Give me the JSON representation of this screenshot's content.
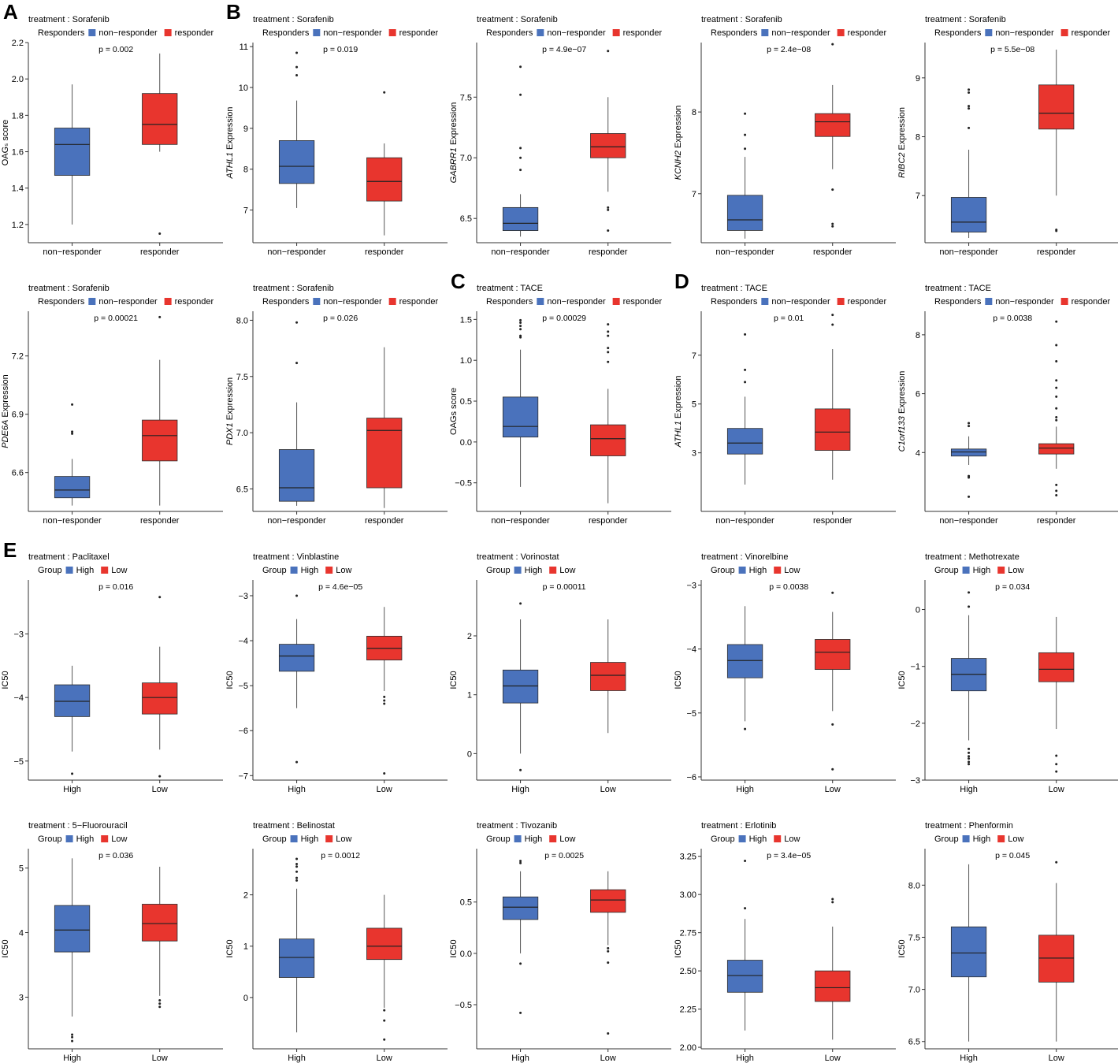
{
  "colors": {
    "blue": "#4A72BC",
    "red": "#E8352E",
    "axis": "#333333",
    "box_stroke": "#2b2b2b"
  },
  "panel_letters": [
    "A",
    "B",
    "C",
    "D",
    "E"
  ],
  "chart_data": [
    {
      "type": "box",
      "title": "treatment : Sorafenib",
      "legend_title": "Responders",
      "categories": [
        "non−responder",
        "responder"
      ],
      "ylabel": "OAGₛ score",
      "ylabel_italic": "",
      "ylim": [
        1.1,
        2.2
      ],
      "yticks": [
        "1.2",
        "1.4",
        "1.6",
        "1.8",
        "2.0",
        "2.2"
      ],
      "pvalue": "p = 0.002",
      "boxes": [
        {
          "q1": 1.47,
          "median": 1.64,
          "q3": 1.73,
          "wlo": 1.2,
          "whi": 1.97,
          "outliers": []
        },
        {
          "q1": 1.64,
          "median": 1.75,
          "q3": 1.92,
          "wlo": 1.6,
          "whi": 2.14,
          "outliers": [
            1.15
          ]
        }
      ]
    },
    {
      "type": "box",
      "title": "treatment : Sorafenib",
      "legend_title": "Responders",
      "categories": [
        "non−responder",
        "responder"
      ],
      "ylabel": " Expression",
      "ylabel_italic": "ATHL1",
      "ylim": [
        6.2,
        11.1
      ],
      "yticks": [
        "7",
        "8",
        "9",
        "10",
        "11"
      ],
      "pvalue": "p = 0.019",
      "boxes": [
        {
          "q1": 7.65,
          "median": 8.07,
          "q3": 8.7,
          "wlo": 7.05,
          "whi": 9.68,
          "outliers": [
            10.3,
            10.5,
            10.85
          ]
        },
        {
          "q1": 7.22,
          "median": 7.7,
          "q3": 8.28,
          "wlo": 6.38,
          "whi": 8.63,
          "outliers": [
            9.88
          ]
        }
      ]
    },
    {
      "type": "box",
      "title": "treatment : Sorafenib",
      "legend_title": "Responders",
      "categories": [
        "non−responder",
        "responder"
      ],
      "ylabel": " Expression",
      "ylabel_italic": "GABRR1",
      "ylim": [
        6.3,
        7.95
      ],
      "yticks": [
        "6.5",
        "7.0",
        "7.5"
      ],
      "pvalue": "p = 4.9e−07",
      "boxes": [
        {
          "q1": 6.4,
          "median": 6.46,
          "q3": 6.59,
          "wlo": 6.35,
          "whi": 6.7,
          "outliers": [
            6.9,
            7.0,
            7.08,
            7.52,
            7.75
          ]
        },
        {
          "q1": 7.0,
          "median": 7.09,
          "q3": 7.2,
          "wlo": 6.72,
          "whi": 7.5,
          "outliers": [
            6.4,
            6.57,
            6.59,
            7.88
          ]
        }
      ]
    },
    {
      "type": "box",
      "title": "treatment : Sorafenib",
      "legend_title": "Responders",
      "categories": [
        "non−responder",
        "responder"
      ],
      "ylabel": " Expression",
      "ylabel_italic": "KCNH2",
      "ylim": [
        6.4,
        8.85
      ],
      "yticks": [
        "7",
        "8"
      ],
      "pvalue": "p = 2.4e−08",
      "boxes": [
        {
          "q1": 6.55,
          "median": 6.68,
          "q3": 6.98,
          "wlo": 6.45,
          "whi": 7.45,
          "outliers": [
            7.55,
            7.72,
            7.98
          ]
        },
        {
          "q1": 7.7,
          "median": 7.88,
          "q3": 7.98,
          "wlo": 7.3,
          "whi": 8.33,
          "outliers": [
            6.6,
            6.63,
            7.05,
            8.83
          ]
        }
      ]
    },
    {
      "type": "box",
      "title": "treatment : Sorafenib",
      "legend_title": "Responders",
      "categories": [
        "non−responder",
        "responder"
      ],
      "ylabel": " Expression",
      "ylabel_italic": "RIBC2",
      "ylim": [
        6.2,
        9.6
      ],
      "yticks": [
        "7",
        "8",
        "9"
      ],
      "pvalue": "p = 5.5e−08",
      "boxes": [
        {
          "q1": 6.38,
          "median": 6.55,
          "q3": 6.97,
          "wlo": 6.28,
          "whi": 7.78,
          "outliers": [
            8.15,
            8.48,
            8.52,
            8.75,
            8.8
          ]
        },
        {
          "q1": 8.13,
          "median": 8.4,
          "q3": 8.88,
          "wlo": 7.0,
          "whi": 9.48,
          "outliers": [
            6.4,
            6.42
          ]
        }
      ]
    },
    {
      "type": "box",
      "title": "treatment : Sorafenib",
      "legend_title": "Responders",
      "categories": [
        "non−responder",
        "responder"
      ],
      "ylabel": " Expression",
      "ylabel_italic": "PDE6A",
      "ylim": [
        6.4,
        7.43
      ],
      "yticks": [
        "6.6",
        "6.9",
        "7.2"
      ],
      "pvalue": "p = 0.00021",
      "boxes": [
        {
          "q1": 6.47,
          "median": 6.51,
          "q3": 6.58,
          "wlo": 6.43,
          "whi": 6.67,
          "outliers": [
            6.8,
            6.81,
            6.95
          ]
        },
        {
          "q1": 6.66,
          "median": 6.79,
          "q3": 6.87,
          "wlo": 6.43,
          "whi": 7.18,
          "outliers": [
            7.4
          ]
        }
      ]
    },
    {
      "type": "box",
      "title": "treatment : Sorafenib",
      "legend_title": "Responders",
      "categories": [
        "non−responder",
        "responder"
      ],
      "ylabel": " Expression",
      "ylabel_italic": "PDX1",
      "ylim": [
        6.3,
        8.08
      ],
      "yticks": [
        "6.5",
        "7.0",
        "7.5",
        "8.0"
      ],
      "pvalue": "p = 0.026",
      "boxes": [
        {
          "q1": 6.39,
          "median": 6.51,
          "q3": 6.85,
          "wlo": 6.35,
          "whi": 7.27,
          "outliers": [
            7.62,
            7.98
          ]
        },
        {
          "q1": 6.51,
          "median": 7.02,
          "q3": 7.13,
          "wlo": 6.33,
          "whi": 7.76,
          "outliers": []
        }
      ]
    },
    {
      "type": "box",
      "title": "treatment : TACE",
      "legend_title": "Responders",
      "categories": [
        "non−responder",
        "responder"
      ],
      "ylabel": "OAGs score",
      "ylabel_italic": "",
      "ylim": [
        -0.85,
        1.6
      ],
      "yticks": [
        "−0.5",
        "0.0",
        "0.5",
        "1.0",
        "1.5"
      ],
      "pvalue": "p = 0.00029",
      "boxes": [
        {
          "q1": 0.06,
          "median": 0.19,
          "q3": 0.55,
          "wlo": -0.55,
          "whi": 1.13,
          "outliers": [
            1.28,
            1.3,
            1.38,
            1.42,
            1.46,
            1.49
          ]
        },
        {
          "q1": -0.17,
          "median": 0.04,
          "q3": 0.21,
          "wlo": -0.75,
          "whi": 0.65,
          "outliers": [
            0.98,
            1.1,
            1.15,
            1.3,
            1.35,
            1.44
          ]
        }
      ]
    },
    {
      "type": "box",
      "title": "treatment : TACE",
      "legend_title": "Responders",
      "categories": [
        "non−responder",
        "responder"
      ],
      "ylabel": " Expression",
      "ylabel_italic": "ATHL1",
      "ylim": [
        0.6,
        8.8
      ],
      "yticks": [
        "3",
        "5",
        "7"
      ],
      "pvalue": "p = 0.01",
      "boxes": [
        {
          "q1": 2.95,
          "median": 3.4,
          "q3": 4.0,
          "wlo": 1.7,
          "whi": 5.3,
          "outliers": [
            5.9,
            6.4,
            7.85
          ]
        },
        {
          "q1": 3.1,
          "median": 3.85,
          "q3": 4.8,
          "wlo": 1.9,
          "whi": 7.25,
          "outliers": [
            8.25,
            8.65
          ]
        }
      ]
    },
    {
      "type": "box",
      "title": "treatment : TACE",
      "legend_title": "Responders",
      "categories": [
        "non−responder",
        "responder"
      ],
      "ylabel": " Expression",
      "ylabel_italic": "C1orf133",
      "ylim": [
        2.0,
        8.8
      ],
      "yticks": [
        "4",
        "6",
        "8"
      ],
      "pvalue": "p = 0.0038",
      "boxes": [
        {
          "q1": 3.88,
          "median": 4.02,
          "q3": 4.12,
          "wlo": 3.58,
          "whi": 4.55,
          "outliers": [
            2.5,
            3.15,
            3.2,
            4.9,
            5.0
          ]
        },
        {
          "q1": 3.95,
          "median": 4.15,
          "q3": 4.3,
          "wlo": 3.45,
          "whi": 4.88,
          "outliers": [
            2.55,
            2.7,
            2.9,
            5.1,
            5.2,
            5.5,
            5.9,
            6.2,
            6.45,
            7.1,
            7.65,
            8.45
          ]
        }
      ]
    },
    {
      "type": "box",
      "title": "treatment : Paclitaxel",
      "legend_title": "Group",
      "categories": [
        "High",
        "Low"
      ],
      "ylabel": "IC50",
      "ylabel_italic": "",
      "ylim": [
        -5.3,
        -2.15
      ],
      "yticks": [
        "−5",
        "−4",
        "−3"
      ],
      "pvalue": "p = 0.016",
      "boxes": [
        {
          "q1": -4.3,
          "median": -4.06,
          "q3": -3.8,
          "wlo": -4.85,
          "whi": -3.5,
          "outliers": [
            -5.2
          ]
        },
        {
          "q1": -4.26,
          "median": -4.0,
          "q3": -3.77,
          "wlo": -4.82,
          "whi": -3.2,
          "outliers": [
            -2.42,
            -5.24
          ]
        }
      ]
    },
    {
      "type": "box",
      "title": "treatment : Vinblastine",
      "legend_title": "Group",
      "categories": [
        "High",
        "Low"
      ],
      "ylabel": "IC50",
      "ylabel_italic": "",
      "ylim": [
        -7.1,
        -2.65
      ],
      "yticks": [
        "−7",
        "−6",
        "−5",
        "−4",
        "−3"
      ],
      "pvalue": "p = 4.6e−05",
      "boxes": [
        {
          "q1": -4.68,
          "median": -4.34,
          "q3": -4.08,
          "wlo": -5.5,
          "whi": -3.52,
          "outliers": [
            -3.0,
            -6.7
          ]
        },
        {
          "q1": -4.43,
          "median": -4.17,
          "q3": -3.9,
          "wlo": -5.12,
          "whi": -3.25,
          "outliers": [
            -5.25,
            -5.33,
            -5.4,
            -6.95
          ]
        }
      ]
    },
    {
      "type": "box",
      "title": "treatment : Vorinostat",
      "legend_title": "Group",
      "categories": [
        "High",
        "Low"
      ],
      "ylabel": "IC50",
      "ylabel_italic": "",
      "ylim": [
        -0.45,
        2.95
      ],
      "yticks": [
        "0",
        "1",
        "2"
      ],
      "pvalue": "p = 0.00011",
      "boxes": [
        {
          "q1": 0.86,
          "median": 1.15,
          "q3": 1.42,
          "wlo": 0.0,
          "whi": 2.28,
          "outliers": [
            -0.28,
            2.55
          ]
        },
        {
          "q1": 1.07,
          "median": 1.33,
          "q3": 1.55,
          "wlo": 0.35,
          "whi": 2.28,
          "outliers": []
        }
      ]
    },
    {
      "type": "box",
      "title": "treatment : Vinorelbine",
      "legend_title": "Group",
      "categories": [
        "High",
        "Low"
      ],
      "ylabel": "IC50",
      "ylabel_italic": "",
      "ylim": [
        -6.05,
        -2.92
      ],
      "yticks": [
        "−6",
        "−5",
        "−4",
        "−3"
      ],
      "pvalue": "p = 0.0038",
      "boxes": [
        {
          "q1": -4.45,
          "median": -4.18,
          "q3": -3.93,
          "wlo": -5.13,
          "whi": -3.33,
          "outliers": [
            -5.25
          ]
        },
        {
          "q1": -4.32,
          "median": -4.05,
          "q3": -3.85,
          "wlo": -4.97,
          "whi": -3.42,
          "outliers": [
            -3.12,
            -5.18,
            -5.88
          ]
        }
      ]
    },
    {
      "type": "box",
      "title": "treatment : Methotrexate",
      "legend_title": "Group",
      "categories": [
        "High",
        "Low"
      ],
      "ylabel": "IC50",
      "ylabel_italic": "",
      "ylim": [
        -3.0,
        0.52
      ],
      "yticks": [
        "−3",
        "−2",
        "−1",
        "0"
      ],
      "pvalue": "p = 0.034",
      "boxes": [
        {
          "q1": -1.43,
          "median": -1.14,
          "q3": -0.86,
          "wlo": -2.3,
          "whi": -0.1,
          "outliers": [
            -2.45,
            -2.52,
            -2.58,
            -2.62,
            -2.68,
            -2.72,
            0.05,
            0.3
          ]
        },
        {
          "q1": -1.27,
          "median": -1.05,
          "q3": -0.76,
          "wlo": -2.1,
          "whi": -0.13,
          "outliers": [
            -2.57,
            -2.72,
            -2.85
          ]
        }
      ]
    },
    {
      "type": "box",
      "title": "treatment : 5−Fluorouracil",
      "legend_title": "Group",
      "categories": [
        "High",
        "Low"
      ],
      "ylabel": "IC50",
      "ylabel_italic": "",
      "ylim": [
        2.2,
        5.3
      ],
      "yticks": [
        "3",
        "4",
        "5"
      ],
      "pvalue": "p = 0.036",
      "boxes": [
        {
          "q1": 3.7,
          "median": 4.04,
          "q3": 4.42,
          "wlo": 2.7,
          "whi": 5.15,
          "outliers": [
            2.32,
            2.38,
            2.42
          ]
        },
        {
          "q1": 3.87,
          "median": 4.14,
          "q3": 4.44,
          "wlo": 3.02,
          "whi": 5.02,
          "outliers": [
            2.85,
            2.9,
            2.95
          ]
        }
      ]
    },
    {
      "type": "box",
      "title": "treatment : Belinostat",
      "legend_title": "Group",
      "categories": [
        "High",
        "Low"
      ],
      "ylabel": "IC50",
      "ylabel_italic": "",
      "ylim": [
        -1.0,
        2.9
      ],
      "yticks": [
        "0",
        "1",
        "2"
      ],
      "pvalue": "p = 0.0012",
      "boxes": [
        {
          "q1": 0.39,
          "median": 0.78,
          "q3": 1.14,
          "wlo": -0.68,
          "whi": 2.12,
          "outliers": [
            2.28,
            2.33,
            2.45,
            2.55,
            2.6,
            2.7
          ]
        },
        {
          "q1": 0.74,
          "median": 1.0,
          "q3": 1.35,
          "wlo": -0.2,
          "whi": 2.0,
          "outliers": [
            -0.25,
            -0.45,
            -0.82
          ]
        }
      ]
    },
    {
      "type": "box",
      "title": "treatment : Tivozanib",
      "legend_title": "Group",
      "categories": [
        "High",
        "Low"
      ],
      "ylabel": "IC50",
      "ylabel_italic": "",
      "ylim": [
        -0.93,
        1.02
      ],
      "yticks": [
        "−0.5",
        "0.0",
        "0.5"
      ],
      "pvalue": "p = 0.0025",
      "boxes": [
        {
          "q1": 0.33,
          "median": 0.45,
          "q3": 0.55,
          "wlo": 0.0,
          "whi": 0.8,
          "outliers": [
            -0.1,
            -0.58,
            0.88,
            0.9
          ]
        },
        {
          "q1": 0.4,
          "median": 0.52,
          "q3": 0.62,
          "wlo": 0.08,
          "whi": 0.8,
          "outliers": [
            0.02,
            0.05,
            -0.09,
            -0.78
          ]
        }
      ]
    },
    {
      "type": "box",
      "title": "treatment : Erlotinib",
      "legend_title": "Group",
      "categories": [
        "High",
        "Low"
      ],
      "ylabel": "IC50",
      "ylabel_italic": "",
      "ylim": [
        1.99,
        3.3
      ],
      "yticks": [
        "2.00",
        "2.25",
        "2.50",
        "2.75",
        "3.00",
        "3.25"
      ],
      "pvalue": "p = 3.4e−05",
      "boxes": [
        {
          "q1": 2.36,
          "median": 2.47,
          "q3": 2.57,
          "wlo": 2.11,
          "whi": 2.84,
          "outliers": [
            2.91,
            3.22
          ]
        },
        {
          "q1": 2.3,
          "median": 2.39,
          "q3": 2.5,
          "wlo": 2.05,
          "whi": 2.79,
          "outliers": [
            2.95,
            2.97
          ]
        }
      ]
    },
    {
      "type": "box",
      "title": "treatment : Phenformin",
      "legend_title": "Group",
      "categories": [
        "High",
        "Low"
      ],
      "ylabel": "IC50",
      "ylabel_italic": "",
      "ylim": [
        6.43,
        8.35
      ],
      "yticks": [
        "6.5",
        "7.0",
        "7.5",
        "8.0"
      ],
      "pvalue": "p = 0.045",
      "boxes": [
        {
          "q1": 7.12,
          "median": 7.35,
          "q3": 7.6,
          "wlo": 6.5,
          "whi": 8.2,
          "outliers": []
        },
        {
          "q1": 7.07,
          "median": 7.3,
          "q3": 7.52,
          "wlo": 6.5,
          "whi": 8.02,
          "outliers": [
            8.22
          ]
        }
      ]
    }
  ]
}
